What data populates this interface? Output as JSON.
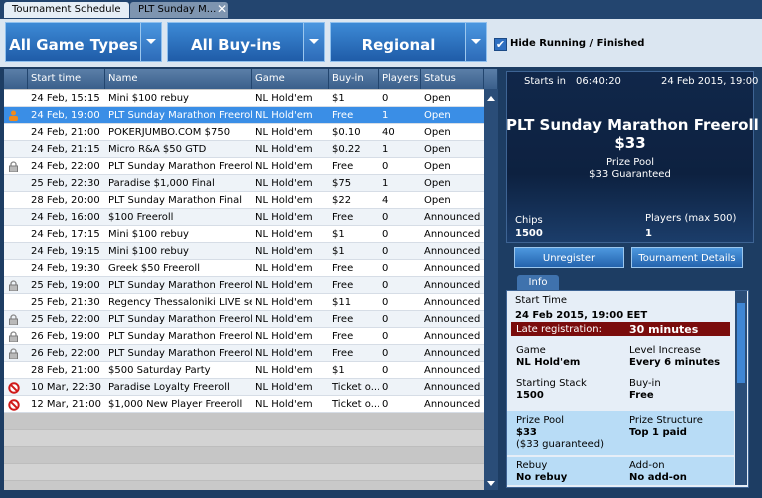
{
  "tabs": [
    "Tournament Schedule",
    "PLT Sunday M..."
  ],
  "filters": {
    "game_types": "All Game Types",
    "buy_ins": "All Buy-ins",
    "region": "Regional",
    "hide_running": "Hide Running / Finished",
    "hide_running_checked": true
  },
  "table": {
    "columns": [
      "Start time",
      "Name",
      "Game",
      "Buy-in",
      "Players",
      "Status"
    ],
    "selected_row": 1,
    "row_icons": [
      null,
      "person",
      null,
      null,
      "lock",
      null,
      null,
      null,
      null,
      null,
      null,
      "lock",
      null,
      "lock",
      "lock",
      "lock",
      null,
      "blocked",
      "blocked"
    ],
    "rows": [
      [
        "24 Feb, 15:15",
        "Mini $100 rebuy",
        "NL Hold'em",
        "$1",
        "0",
        "Open"
      ],
      [
        "24 Feb, 19:00",
        "PLT Sunday Marathon Freeroll",
        "NL Hold'em",
        "Free",
        "1",
        "Open"
      ],
      [
        "24 Feb, 21:00",
        "POKERJUMBO.COM $750",
        "NL Hold'em",
        "$0.10",
        "40",
        "Open"
      ],
      [
        "24 Feb, 21:15",
        "Micro R&A $50 GTD",
        "NL Hold'em",
        "$0.22",
        "1",
        "Open"
      ],
      [
        "24 Feb, 22:00",
        "PLT Sunday Marathon Freeroll",
        "NL Hold'em",
        "Free",
        "0",
        "Open"
      ],
      [
        "25 Feb, 22:30",
        "Paradise $1,000 Final",
        "NL Hold'em",
        "$75",
        "1",
        "Open"
      ],
      [
        "28 Feb, 20:00",
        "PLT Sunday Marathon Final",
        "NL Hold'em",
        "$22",
        "4",
        "Open"
      ],
      [
        "24 Feb, 16:00",
        "$100 Freeroll",
        "NL Hold'em",
        "Free",
        "0",
        "Announced"
      ],
      [
        "24 Feb, 17:15",
        "Mini $100 rebuy",
        "NL Hold'em",
        "$1",
        "0",
        "Announced"
      ],
      [
        "24 Feb, 19:15",
        "Mini $100 rebuy",
        "NL Hold'em",
        "$1",
        "0",
        "Announced"
      ],
      [
        "24 Feb, 19:30",
        "Greek $50 Freeroll",
        "NL Hold'em",
        "Free",
        "0",
        "Announced"
      ],
      [
        "25 Feb, 19:00",
        "PLT Sunday Marathon Freeroll",
        "NL Hold'em",
        "Free",
        "0",
        "Announced"
      ],
      [
        "25 Feb, 21:30",
        "Regency Thessaloniki LIVE seat",
        "NL Hold'em",
        "$11",
        "0",
        "Announced"
      ],
      [
        "25 Feb, 22:00",
        "PLT Sunday Marathon Freeroll",
        "NL Hold'em",
        "Free",
        "0",
        "Announced"
      ],
      [
        "26 Feb, 19:00",
        "PLT Sunday Marathon Freeroll",
        "NL Hold'em",
        "Free",
        "0",
        "Announced"
      ],
      [
        "26 Feb, 22:00",
        "PLT Sunday Marathon Freeroll",
        "NL Hold'em",
        "Free",
        "0",
        "Announced"
      ],
      [
        "28 Feb, 21:00",
        "$500 Saturday Party",
        "NL Hold'em",
        "$1",
        "0",
        "Announced"
      ],
      [
        "10 Mar, 22:30",
        "Paradise Loyalty Freeroll",
        "NL Hold'em",
        "Ticket o...",
        "0",
        "Announced"
      ],
      [
        "12 Mar, 21:00",
        "$1,000 New Player Freeroll",
        "NL Hold'em",
        "Ticket o...",
        "0",
        "Announced"
      ]
    ]
  },
  "summary": {
    "starts_in_label": "Starts in",
    "starts_in": "06:40:20",
    "date": "24 Feb 2015, 19:00",
    "title": "PLT Sunday Marathon Freeroll",
    "prize": "$33",
    "prize_label": "Prize Pool",
    "guaranteed": "$33 Guaranteed",
    "chips_label": "Chips",
    "chips": "1500",
    "players_label": "Players (max 500)",
    "players": "1"
  },
  "buttons": [
    "Unregister",
    "Tournament Details"
  ],
  "info": {
    "tab": "Info",
    "start_time_label": "Start Time",
    "start_time": "24 Feb 2015, 19:00 EET",
    "late_reg_label": "Late registration:",
    "late_reg": "30 minutes",
    "game_label": "Game",
    "game": "NL Hold'em",
    "level_label": "Level Increase",
    "level": "Every 6 minutes",
    "stack_label": "Starting Stack",
    "stack": "1500",
    "buyin_label": "Buy-in",
    "buyin": "Free",
    "prize_label": "Prize Pool",
    "prize": "$33",
    "prize_note": "($33 guaranteed)",
    "structure_label": "Prize Structure",
    "structure": "Top 1 paid",
    "rebuy_label": "Rebuy",
    "rebuy": "No rebuy",
    "addon_label": "Add-on",
    "addon": "No add-on"
  }
}
